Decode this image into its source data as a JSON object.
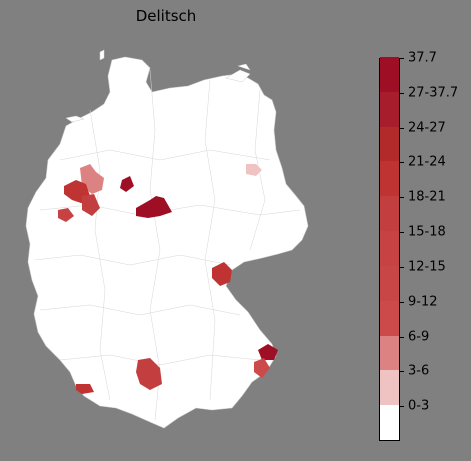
{
  "title": "Delitsch",
  "legend": {
    "labels": [
      "37.7",
      "27-37.7",
      "24-27",
      "21-24",
      "18-21",
      "15-18",
      "12-15",
      "9-12",
      "6-9",
      "3-6",
      "0-3"
    ],
    "colors_bottom_to_top": [
      "#ffffff",
      "#f0c3c3",
      "#dd8282",
      "#cc4a4a",
      "#c94646",
      "#c74242",
      "#c33e3e",
      "#bf3333",
      "#b22a2a",
      "#a81d2b",
      "#9e0f25"
    ]
  },
  "map": {
    "background": "#808080",
    "land_fill": "#ffffff",
    "border_color": "#cccccc"
  }
}
